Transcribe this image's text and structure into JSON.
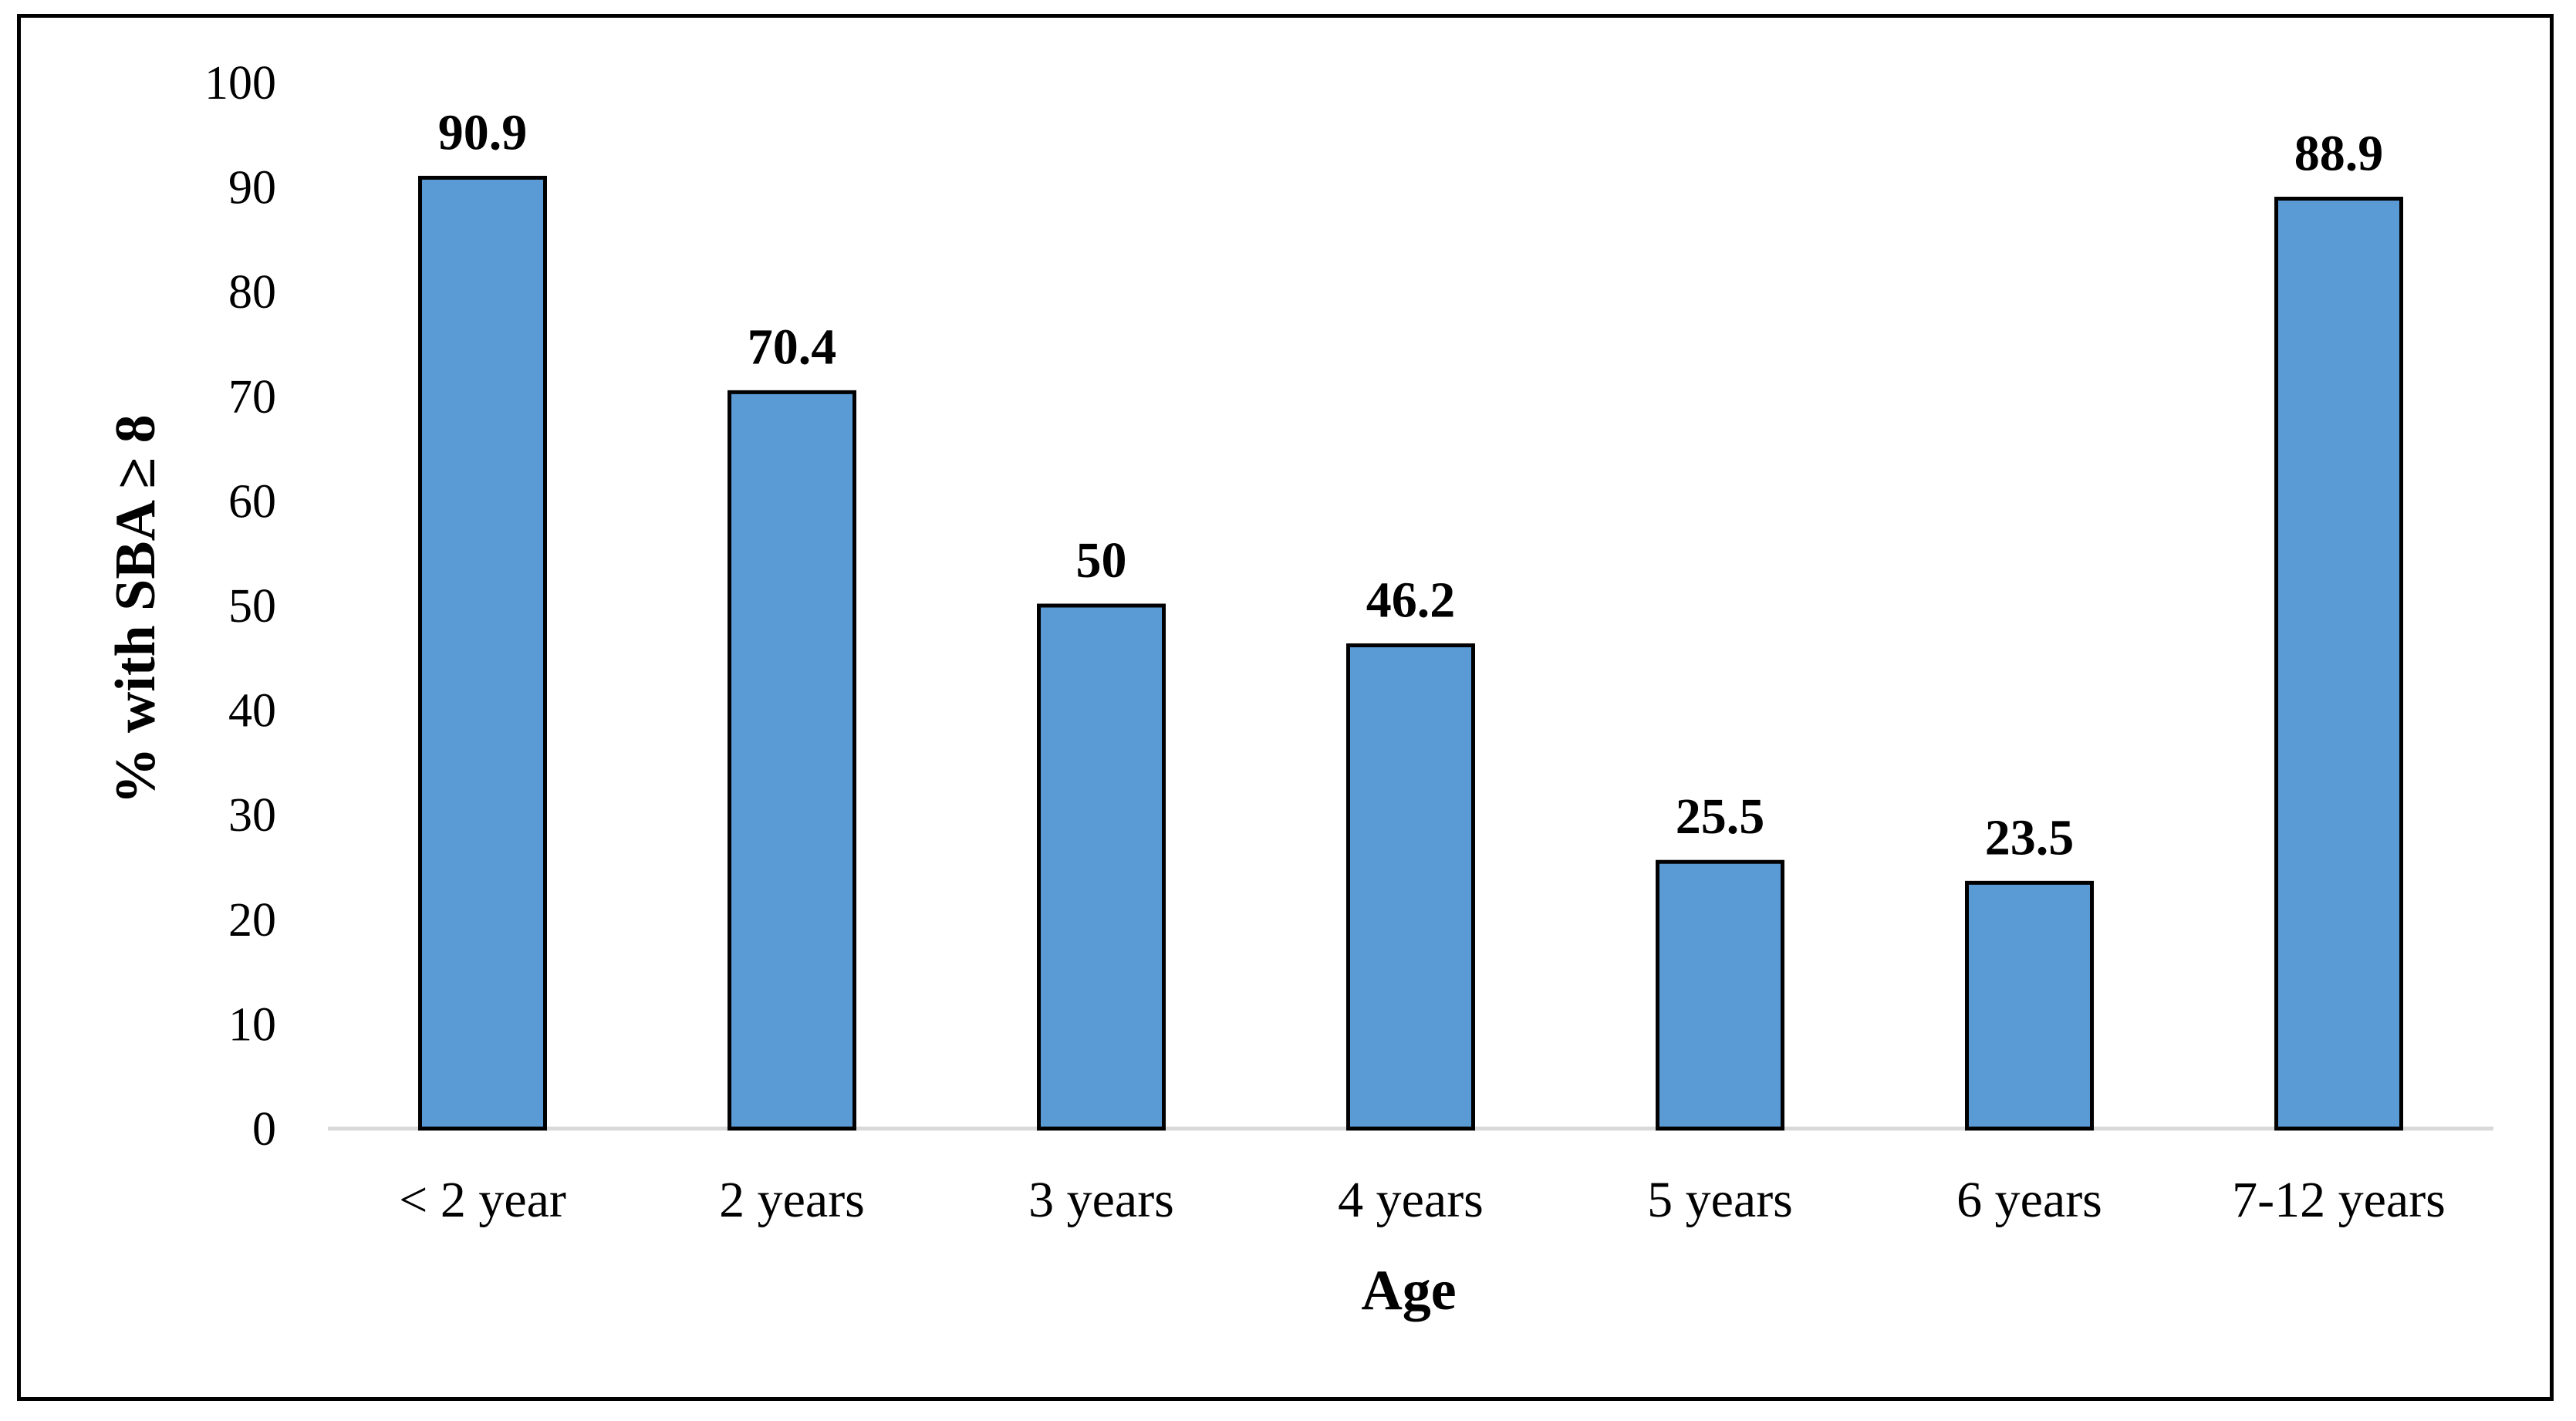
{
  "chart_data": {
    "type": "bar",
    "categories": [
      "< 2 year",
      "2 years",
      "3 years",
      "4 years",
      "5 years",
      "6 years",
      "7-12 years"
    ],
    "values": [
      90.9,
      70.4,
      50,
      46.2,
      25.5,
      23.5,
      88.9
    ],
    "data_labels": [
      "90.9",
      "70.4",
      "50",
      "46.2",
      "25.5",
      "23.5",
      "88.9"
    ],
    "xlabel": "Age",
    "ylabel": "% with SBA ≥ 8",
    "ylim": [
      0,
      100
    ],
    "yticks": [
      0,
      10,
      20,
      30,
      40,
      50,
      60,
      70,
      80,
      90,
      100
    ],
    "grid": false,
    "legend": "none",
    "bar_color": "#5B9BD5",
    "bar_edge_color": "#000000",
    "axis_color": "#D9D9D9"
  }
}
